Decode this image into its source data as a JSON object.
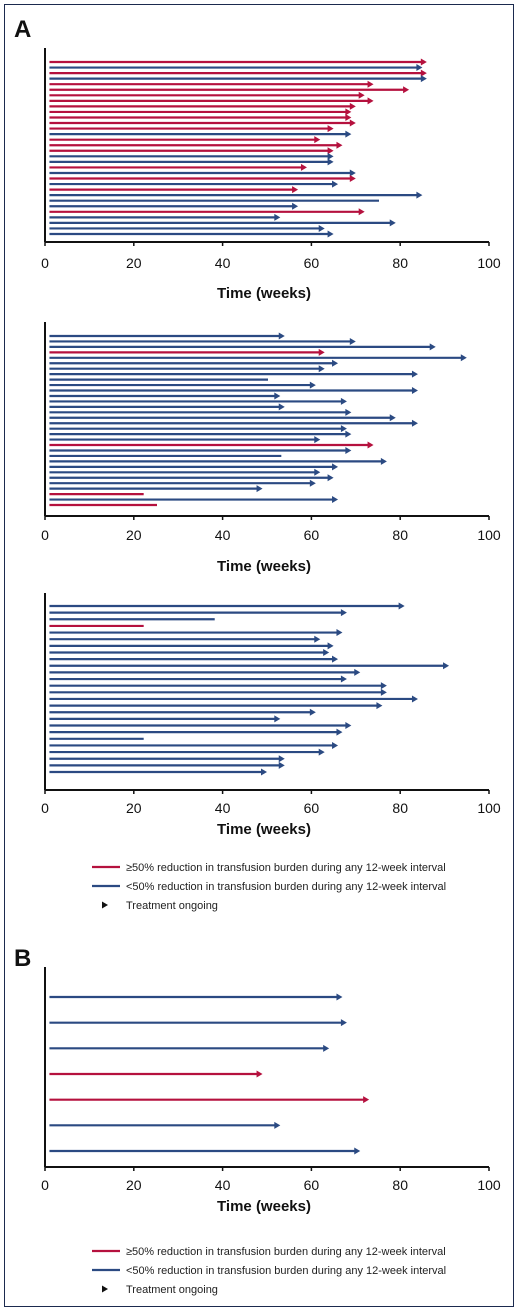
{
  "colors": {
    "responder": "#b5113e",
    "nonresponder": "#2b4a82",
    "axis": "#111111"
  },
  "panels": {
    "A": "A",
    "B": "B"
  },
  "axis": {
    "xlabel": "Time (weeks)",
    "ticks": [
      "0",
      "20",
      "40",
      "60",
      "80",
      "100"
    ]
  },
  "legend": {
    "responder": "≥50% reduction in transfusion burden during any 12-week interval",
    "nonresponder": "<50% reduction in transfusion burden during any 12-week interval",
    "ongoing": "Treatment ongoing"
  },
  "chart_data": [
    {
      "type": "bar",
      "panel": "A",
      "xlabel": "Time (weeks)",
      "xlim": [
        0,
        100
      ],
      "segments_legend": [
        "≥50% reduction in transfusion burden during any 12-week interval",
        "<50% reduction in transfusion burden during any 12-week interval"
      ],
      "bars": [
        {
          "end": 86,
          "ongoing": true,
          "color": "responder"
        },
        {
          "end": 85,
          "ongoing": true,
          "color": "nonresponder"
        },
        {
          "end": 86,
          "ongoing": true,
          "color": "responder"
        },
        {
          "end": 86,
          "ongoing": true,
          "color": "nonresponder"
        },
        {
          "end": 74,
          "ongoing": true,
          "color": "responder"
        },
        {
          "end": 82,
          "ongoing": true,
          "color": "responder"
        },
        {
          "end": 72,
          "ongoing": true,
          "color": "responder"
        },
        {
          "end": 74,
          "ongoing": true,
          "color": "responder"
        },
        {
          "end": 70,
          "ongoing": true,
          "color": "responder"
        },
        {
          "end": 69,
          "ongoing": true,
          "color": "responder"
        },
        {
          "end": 69,
          "ongoing": true,
          "color": "responder"
        },
        {
          "end": 70,
          "ongoing": true,
          "color": "responder"
        },
        {
          "end": 65,
          "ongoing": true,
          "color": "responder"
        },
        {
          "end": 69,
          "ongoing": true,
          "color": "nonresponder"
        },
        {
          "end": 62,
          "ongoing": true,
          "color": "responder"
        },
        {
          "end": 67,
          "ongoing": true,
          "color": "responder"
        },
        {
          "end": 65,
          "ongoing": true,
          "color": "responder"
        },
        {
          "end": 65,
          "ongoing": true,
          "color": "nonresponder"
        },
        {
          "end": 65,
          "ongoing": true,
          "color": "nonresponder"
        },
        {
          "end": 59,
          "ongoing": true,
          "color": "responder"
        },
        {
          "end": 70,
          "ongoing": true,
          "color": "nonresponder"
        },
        {
          "end": 70,
          "ongoing": true,
          "color": "responder"
        },
        {
          "end": 66,
          "ongoing": true,
          "color": "nonresponder"
        },
        {
          "end": 57,
          "ongoing": true,
          "color": "responder"
        },
        {
          "end": 85,
          "ongoing": true,
          "color": "nonresponder"
        },
        {
          "end": 75,
          "ongoing": false,
          "color": "nonresponder"
        },
        {
          "end": 57,
          "ongoing": true,
          "color": "nonresponder"
        },
        {
          "end": 72,
          "ongoing": true,
          "color": "responder"
        },
        {
          "end": 53,
          "ongoing": true,
          "color": "nonresponder"
        },
        {
          "end": 79,
          "ongoing": true,
          "color": "nonresponder"
        },
        {
          "end": 63,
          "ongoing": true,
          "color": "nonresponder"
        },
        {
          "end": 65,
          "ongoing": true,
          "color": "nonresponder"
        }
      ]
    },
    {
      "type": "bar",
      "panel": "A2",
      "xlabel": "Time (weeks)",
      "xlim": [
        0,
        100
      ],
      "bars": [
        {
          "end": 54,
          "ongoing": true,
          "color": "nonresponder"
        },
        {
          "end": 70,
          "ongoing": true,
          "color": "nonresponder"
        },
        {
          "end": 88,
          "ongoing": true,
          "color": "nonresponder"
        },
        {
          "end": 63,
          "ongoing": true,
          "color": "responder"
        },
        {
          "end": 95,
          "ongoing": true,
          "color": "nonresponder"
        },
        {
          "end": 66,
          "ongoing": true,
          "color": "nonresponder"
        },
        {
          "end": 63,
          "ongoing": true,
          "color": "nonresponder"
        },
        {
          "end": 84,
          "ongoing": true,
          "color": "nonresponder"
        },
        {
          "end": 50,
          "ongoing": false,
          "color": "nonresponder"
        },
        {
          "end": 61,
          "ongoing": true,
          "color": "nonresponder"
        },
        {
          "end": 84,
          "ongoing": true,
          "color": "nonresponder"
        },
        {
          "end": 53,
          "ongoing": true,
          "color": "nonresponder"
        },
        {
          "end": 68,
          "ongoing": true,
          "color": "nonresponder"
        },
        {
          "end": 54,
          "ongoing": true,
          "color": "nonresponder"
        },
        {
          "end": 69,
          "ongoing": true,
          "color": "nonresponder"
        },
        {
          "end": 79,
          "ongoing": true,
          "color": "nonresponder"
        },
        {
          "end": 84,
          "ongoing": true,
          "color": "nonresponder"
        },
        {
          "end": 68,
          "ongoing": true,
          "color": "nonresponder"
        },
        {
          "end": 69,
          "ongoing": true,
          "color": "nonresponder"
        },
        {
          "end": 62,
          "ongoing": true,
          "color": "nonresponder"
        },
        {
          "end": 74,
          "ongoing": true,
          "color": "responder"
        },
        {
          "end": 69,
          "ongoing": true,
          "color": "nonresponder"
        },
        {
          "end": 53,
          "ongoing": false,
          "color": "nonresponder"
        },
        {
          "end": 77,
          "ongoing": true,
          "color": "nonresponder"
        },
        {
          "end": 66,
          "ongoing": true,
          "color": "nonresponder"
        },
        {
          "end": 62,
          "ongoing": true,
          "color": "nonresponder"
        },
        {
          "end": 65,
          "ongoing": true,
          "color": "nonresponder"
        },
        {
          "end": 61,
          "ongoing": true,
          "color": "nonresponder"
        },
        {
          "end": 49,
          "ongoing": true,
          "color": "nonresponder"
        },
        {
          "end": 22,
          "ongoing": false,
          "color": "responder"
        },
        {
          "end": 66,
          "ongoing": true,
          "color": "nonresponder"
        },
        {
          "end": 25,
          "ongoing": false,
          "color": "responder"
        }
      ]
    },
    {
      "type": "bar",
      "panel": "A3",
      "xlabel": "Time (weeks)",
      "xlim": [
        0,
        100
      ],
      "bars": [
        {
          "end": 81,
          "ongoing": true,
          "color": "nonresponder"
        },
        {
          "end": 68,
          "ongoing": true,
          "color": "nonresponder"
        },
        {
          "end": 38,
          "ongoing": false,
          "color": "nonresponder"
        },
        {
          "end": 22,
          "ongoing": false,
          "color": "responder"
        },
        {
          "end": 67,
          "ongoing": true,
          "color": "nonresponder"
        },
        {
          "end": 62,
          "ongoing": true,
          "color": "nonresponder"
        },
        {
          "end": 65,
          "ongoing": true,
          "color": "nonresponder"
        },
        {
          "end": 64,
          "ongoing": true,
          "color": "nonresponder"
        },
        {
          "end": 66,
          "ongoing": true,
          "color": "nonresponder"
        },
        {
          "end": 91,
          "ongoing": true,
          "color": "nonresponder"
        },
        {
          "end": 71,
          "ongoing": true,
          "color": "nonresponder"
        },
        {
          "end": 68,
          "ongoing": true,
          "color": "nonresponder"
        },
        {
          "end": 77,
          "ongoing": true,
          "color": "nonresponder"
        },
        {
          "end": 77,
          "ongoing": true,
          "color": "nonresponder"
        },
        {
          "end": 84,
          "ongoing": true,
          "color": "nonresponder"
        },
        {
          "end": 76,
          "ongoing": true,
          "color": "nonresponder"
        },
        {
          "end": 61,
          "ongoing": true,
          "color": "nonresponder"
        },
        {
          "end": 53,
          "ongoing": true,
          "color": "nonresponder"
        },
        {
          "end": 69,
          "ongoing": true,
          "color": "nonresponder"
        },
        {
          "end": 67,
          "ongoing": true,
          "color": "nonresponder"
        },
        {
          "end": 22,
          "ongoing": false,
          "color": "nonresponder"
        },
        {
          "end": 66,
          "ongoing": true,
          "color": "nonresponder"
        },
        {
          "end": 63,
          "ongoing": true,
          "color": "nonresponder"
        },
        {
          "end": 54,
          "ongoing": true,
          "color": "nonresponder"
        },
        {
          "end": 54,
          "ongoing": true,
          "color": "nonresponder"
        },
        {
          "end": 50,
          "ongoing": true,
          "color": "nonresponder"
        }
      ]
    },
    {
      "type": "bar",
      "panel": "B",
      "xlabel": "Time (weeks)",
      "xlim": [
        0,
        100
      ],
      "bars": [
        {
          "end": 67,
          "ongoing": true,
          "color": "nonresponder"
        },
        {
          "end": 68,
          "ongoing": true,
          "color": "nonresponder"
        },
        {
          "end": 64,
          "ongoing": true,
          "color": "nonresponder"
        },
        {
          "end": 49,
          "ongoing": true,
          "color": "responder"
        },
        {
          "end": 73,
          "ongoing": true,
          "color": "responder"
        },
        {
          "end": 53,
          "ongoing": true,
          "color": "nonresponder"
        },
        {
          "end": 71,
          "ongoing": true,
          "color": "nonresponder"
        }
      ]
    }
  ]
}
